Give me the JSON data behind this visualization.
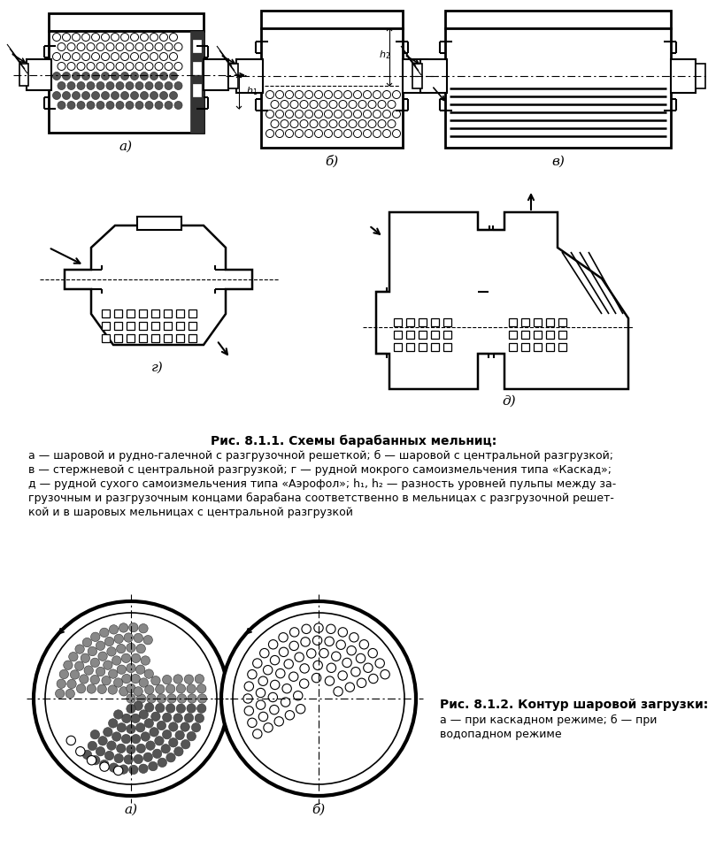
{
  "fig_title_1": "Рис. 8.1.1. Схемы барабанных мельниц:",
  "fig_caption_lines": [
    "а — шаровой и рудно-галечной с разгрузочной решеткой; б — шаровой с центральной разгрузкой;",
    "в — стержневой с центральной разгрузкой; г — рудной мокрого самоизмельчения типа «Каскад»;",
    "д — рудной сухого самоизмельчения типа «Аэрофол»; h₁, h₂ — разность уровней пульпы между за-",
    "грузочным и разгрузочным концами барабана соответственно в мельницах с разгрузочной решет-",
    "кой и в шаровых мельницах с центральной разгрузкой"
  ],
  "fig_title_2": "Рис. 8.1.2. Контур шаровой загрузки:",
  "fig_caption_2a": "а — при каскадном режиме; б — при",
  "fig_caption_2b": "водопадном режиме",
  "bg": "#ffffff"
}
